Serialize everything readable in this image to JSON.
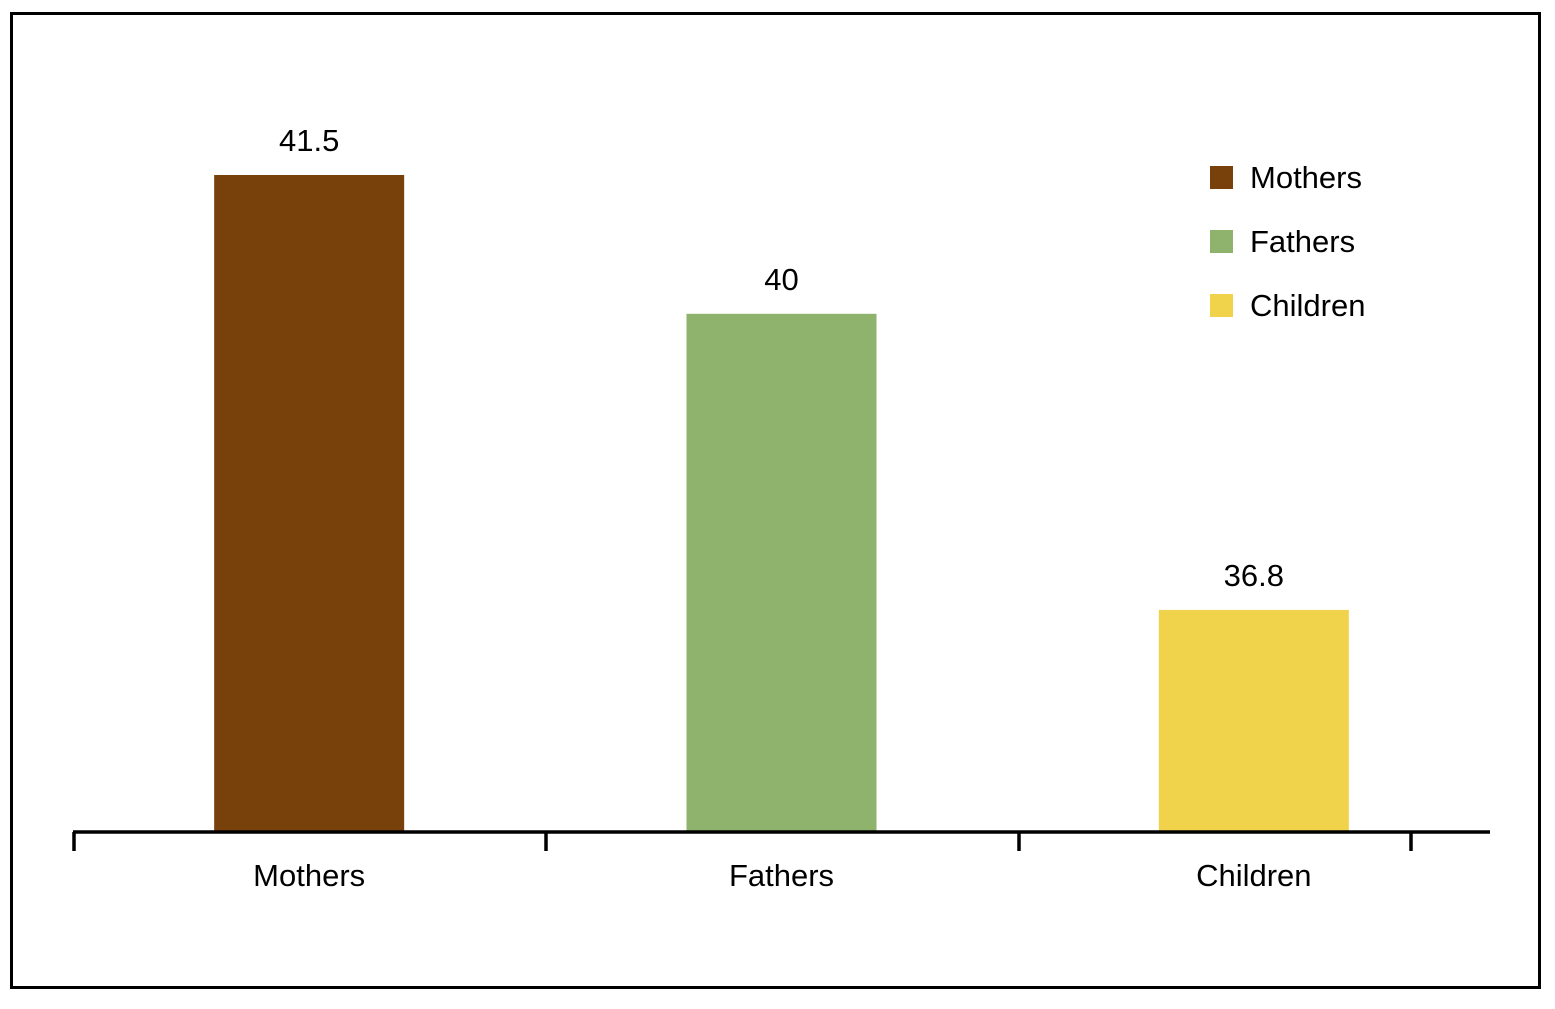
{
  "chart_data": {
    "type": "bar",
    "categories": [
      "Mothers",
      "Fathers",
      "Children"
    ],
    "values": [
      41.5,
      40,
      36.8
    ],
    "data_labels": [
      "41.5",
      "40",
      "36.8"
    ],
    "colors": [
      "#78410b",
      "#8fb26d",
      "#f1d24b"
    ],
    "title": "",
    "xlabel": "",
    "ylabel": "",
    "ylim": [
      34.4,
      42.3
    ],
    "y_axis_visible": false,
    "grid": false,
    "legend": {
      "position": "top-right",
      "entries": [
        {
          "label": "Mothers",
          "color": "#78410b"
        },
        {
          "label": "Fathers",
          "color": "#8fb26d"
        },
        {
          "label": "Children",
          "color": "#f1d24b"
        }
      ]
    }
  }
}
